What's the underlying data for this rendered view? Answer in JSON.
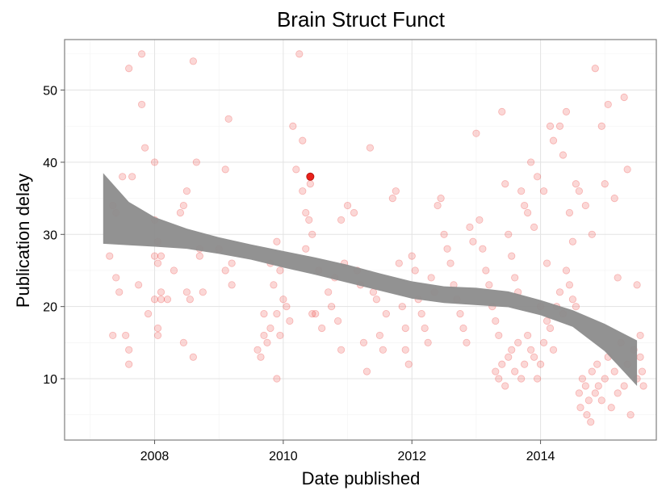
{
  "chart_data": {
    "type": "scatter",
    "title": "Brain Struct Funct",
    "xlabel": "Date published",
    "ylabel": "Publication delay",
    "x_ticks": [
      2008,
      2010,
      2012,
      2014
    ],
    "y_ticks": [
      10,
      20,
      30,
      40,
      50
    ],
    "xlim": [
      2006.6,
      2015.8
    ],
    "ylim": [
      1.5,
      57
    ],
    "grid": true,
    "point_color": "#e8211b",
    "highlight_color": "#e8211b",
    "band_color": "#8c8c8c",
    "highlight": {
      "x": 2010.42,
      "y": 38
    },
    "smooth_band": [
      {
        "x": 2007.2,
        "lower": 28.7,
        "upper": 38.5
      },
      {
        "x": 2007.6,
        "lower": 28.5,
        "upper": 34.5
      },
      {
        "x": 2008.0,
        "lower": 28.3,
        "upper": 32.4
      },
      {
        "x": 2008.5,
        "lower": 28.0,
        "upper": 30.8
      },
      {
        "x": 2009.0,
        "lower": 27.3,
        "upper": 29.6
      },
      {
        "x": 2009.5,
        "lower": 26.5,
        "upper": 28.6
      },
      {
        "x": 2010.0,
        "lower": 25.4,
        "upper": 27.7
      },
      {
        "x": 2010.5,
        "lower": 24.4,
        "upper": 26.8
      },
      {
        "x": 2011.0,
        "lower": 23.3,
        "upper": 25.8
      },
      {
        "x": 2011.5,
        "lower": 22.2,
        "upper": 24.6
      },
      {
        "x": 2012.0,
        "lower": 21.1,
        "upper": 23.5
      },
      {
        "x": 2012.5,
        "lower": 20.5,
        "upper": 22.8
      },
      {
        "x": 2013.0,
        "lower": 20.2,
        "upper": 22.6
      },
      {
        "x": 2013.5,
        "lower": 19.9,
        "upper": 22.1
      },
      {
        "x": 2014.0,
        "lower": 18.8,
        "upper": 20.9
      },
      {
        "x": 2014.5,
        "lower": 17.2,
        "upper": 19.5
      },
      {
        "x": 2015.0,
        "lower": 13.8,
        "upper": 17.6
      },
      {
        "x": 2015.5,
        "lower": 9.0,
        "upper": 15.3
      }
    ],
    "points": [
      [
        2007.6,
        53
      ],
      [
        2007.8,
        55
      ],
      [
        2007.8,
        48
      ],
      [
        2007.85,
        42
      ],
      [
        2007.5,
        38
      ],
      [
        2007.65,
        38
      ],
      [
        2008.0,
        40
      ],
      [
        2007.35,
        34
      ],
      [
        2007.4,
        33
      ],
      [
        2007.3,
        27
      ],
      [
        2007.4,
        24
      ],
      [
        2007.45,
        22
      ],
      [
        2007.35,
        16
      ],
      [
        2007.55,
        16
      ],
      [
        2007.6,
        14
      ],
      [
        2007.6,
        12
      ],
      [
        2007.75,
        23
      ],
      [
        2007.9,
        19
      ],
      [
        2008.0,
        32
      ],
      [
        2008.05,
        29
      ],
      [
        2008.0,
        27
      ],
      [
        2008.1,
        27
      ],
      [
        2008.05,
        26
      ],
      [
        2008.0,
        21
      ],
      [
        2008.1,
        21
      ],
      [
        2008.1,
        22
      ],
      [
        2008.05,
        17
      ],
      [
        2008.05,
        16
      ],
      [
        2008.2,
        21
      ],
      [
        2008.3,
        25
      ],
      [
        2008.4,
        33
      ],
      [
        2008.45,
        34
      ],
      [
        2008.5,
        36
      ],
      [
        2008.5,
        22
      ],
      [
        2008.55,
        21
      ],
      [
        2008.45,
        15
      ],
      [
        2008.6,
        13
      ],
      [
        2008.6,
        54
      ],
      [
        2008.65,
        40
      ],
      [
        2008.7,
        28
      ],
      [
        2008.7,
        27
      ],
      [
        2008.75,
        22
      ],
      [
        2009.0,
        28
      ],
      [
        2009.1,
        39
      ],
      [
        2009.15,
        46
      ],
      [
        2009.2,
        26
      ],
      [
        2009.2,
        23
      ],
      [
        2009.1,
        25
      ],
      [
        2009.6,
        14
      ],
      [
        2009.65,
        13
      ],
      [
        2009.7,
        16
      ],
      [
        2009.7,
        19
      ],
      [
        2009.75,
        15
      ],
      [
        2009.8,
        17
      ],
      [
        2009.8,
        26
      ],
      [
        2009.85,
        23
      ],
      [
        2009.9,
        29
      ],
      [
        2009.95,
        25
      ],
      [
        2009.9,
        19
      ],
      [
        2009.95,
        16
      ],
      [
        2009.9,
        10
      ],
      [
        2010.0,
        21
      ],
      [
        2010.05,
        20
      ],
      [
        2010.1,
        18
      ],
      [
        2010.15,
        45
      ],
      [
        2010.2,
        39
      ],
      [
        2010.25,
        55
      ],
      [
        2010.3,
        43
      ],
      [
        2010.3,
        36
      ],
      [
        2010.35,
        33
      ],
      [
        2010.35,
        28
      ],
      [
        2010.4,
        32
      ],
      [
        2010.42,
        37
      ],
      [
        2010.45,
        30
      ],
      [
        2010.45,
        19
      ],
      [
        2010.5,
        19
      ],
      [
        2010.55,
        25
      ],
      [
        2010.6,
        17
      ],
      [
        2010.7,
        22
      ],
      [
        2010.75,
        20
      ],
      [
        2010.8,
        24
      ],
      [
        2010.85,
        18
      ],
      [
        2010.9,
        14
      ],
      [
        2010.95,
        26
      ],
      [
        2010.9,
        32
      ],
      [
        2011.0,
        34
      ],
      [
        2011.1,
        33
      ],
      [
        2011.15,
        25
      ],
      [
        2011.2,
        23
      ],
      [
        2011.3,
        11
      ],
      [
        2011.25,
        15
      ],
      [
        2011.35,
        42
      ],
      [
        2011.4,
        22
      ],
      [
        2011.45,
        21
      ],
      [
        2011.5,
        16
      ],
      [
        2011.55,
        14
      ],
      [
        2011.6,
        19
      ],
      [
        2011.7,
        35
      ],
      [
        2011.75,
        36
      ],
      [
        2011.8,
        26
      ],
      [
        2011.85,
        20
      ],
      [
        2011.9,
        17
      ],
      [
        2011.9,
        14
      ],
      [
        2011.95,
        12
      ],
      [
        2012.0,
        27
      ],
      [
        2012.05,
        25
      ],
      [
        2012.1,
        21
      ],
      [
        2012.15,
        19
      ],
      [
        2012.2,
        17
      ],
      [
        2012.25,
        15
      ],
      [
        2012.3,
        24
      ],
      [
        2012.35,
        22
      ],
      [
        2012.4,
        34
      ],
      [
        2012.45,
        35
      ],
      [
        2012.5,
        30
      ],
      [
        2012.55,
        28
      ],
      [
        2012.6,
        26
      ],
      [
        2012.65,
        23
      ],
      [
        2012.7,
        21
      ],
      [
        2012.75,
        19
      ],
      [
        2012.8,
        17
      ],
      [
        2012.85,
        15
      ],
      [
        2012.9,
        31
      ],
      [
        2012.95,
        29
      ],
      [
        2013.0,
        44
      ],
      [
        2013.05,
        32
      ],
      [
        2013.1,
        28
      ],
      [
        2013.15,
        25
      ],
      [
        2013.2,
        23
      ],
      [
        2013.25,
        20
      ],
      [
        2013.3,
        18
      ],
      [
        2013.35,
        16
      ],
      [
        2013.4,
        47
      ],
      [
        2013.45,
        37
      ],
      [
        2013.5,
        30
      ],
      [
        2013.55,
        27
      ],
      [
        2013.6,
        24
      ],
      [
        2013.65,
        22
      ],
      [
        2013.7,
        36
      ],
      [
        2013.75,
        34
      ],
      [
        2013.8,
        33
      ],
      [
        2013.85,
        40
      ],
      [
        2013.9,
        31
      ],
      [
        2013.95,
        38
      ],
      [
        2014.0,
        20
      ],
      [
        2014.05,
        36
      ],
      [
        2014.1,
        26
      ],
      [
        2014.15,
        45
      ],
      [
        2014.2,
        43
      ],
      [
        2014.3,
        45
      ],
      [
        2014.35,
        41
      ],
      [
        2014.4,
        47
      ],
      [
        2014.45,
        33
      ],
      [
        2014.5,
        29
      ],
      [
        2014.55,
        37
      ],
      [
        2014.6,
        36
      ],
      [
        2014.7,
        34
      ],
      [
        2014.8,
        30
      ],
      [
        2014.85,
        53
      ],
      [
        2014.95,
        45
      ],
      [
        2015.0,
        37
      ],
      [
        2015.05,
        48
      ],
      [
        2015.15,
        35
      ],
      [
        2015.2,
        24
      ],
      [
        2015.3,
        49
      ],
      [
        2015.35,
        39
      ],
      [
        2015.5,
        23
      ],
      [
        2015.55,
        16
      ],
      [
        2013.3,
        11
      ],
      [
        2013.35,
        10
      ],
      [
        2013.4,
        12
      ],
      [
        2013.45,
        9
      ],
      [
        2013.5,
        13
      ],
      [
        2013.55,
        14
      ],
      [
        2013.6,
        11
      ],
      [
        2013.65,
        15
      ],
      [
        2013.7,
        10
      ],
      [
        2013.75,
        12
      ],
      [
        2013.8,
        16
      ],
      [
        2013.85,
        14
      ],
      [
        2013.9,
        13
      ],
      [
        2013.95,
        10
      ],
      [
        2014.0,
        12
      ],
      [
        2014.05,
        15
      ],
      [
        2014.1,
        18
      ],
      [
        2014.15,
        17
      ],
      [
        2014.2,
        14
      ],
      [
        2014.25,
        20
      ],
      [
        2014.3,
        22
      ],
      [
        2014.35,
        19
      ],
      [
        2014.4,
        25
      ],
      [
        2014.45,
        23
      ],
      [
        2014.5,
        21
      ],
      [
        2014.55,
        20
      ],
      [
        2014.6,
        8
      ],
      [
        2014.62,
        6
      ],
      [
        2014.65,
        10
      ],
      [
        2014.7,
        9
      ],
      [
        2014.72,
        5
      ],
      [
        2014.75,
        7
      ],
      [
        2014.78,
        4
      ],
      [
        2014.8,
        11
      ],
      [
        2014.85,
        8
      ],
      [
        2014.88,
        12
      ],
      [
        2014.9,
        9
      ],
      [
        2014.95,
        7
      ],
      [
        2015.0,
        10
      ],
      [
        2015.05,
        13
      ],
      [
        2015.1,
        6
      ],
      [
        2015.15,
        11
      ],
      [
        2015.2,
        8
      ],
      [
        2015.25,
        15
      ],
      [
        2015.3,
        9
      ],
      [
        2015.35,
        12
      ],
      [
        2015.4,
        5
      ],
      [
        2015.45,
        14
      ],
      [
        2015.5,
        10
      ],
      [
        2015.55,
        13
      ],
      [
        2015.6,
        9
      ],
      [
        2015.58,
        11
      ]
    ]
  }
}
